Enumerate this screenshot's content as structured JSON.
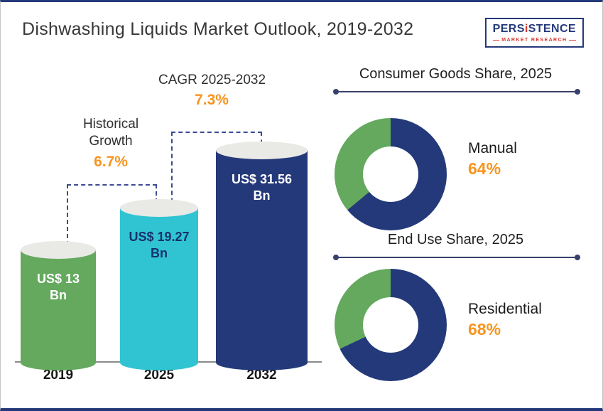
{
  "header": {
    "title": "Dishwashing Liquids Market Outlook, 2019-2032",
    "logo": {
      "part1": "PERS",
      "part2": "i",
      "part3": "STENCE",
      "tagline": "MARKET RESEARCH"
    }
  },
  "colors": {
    "green": "#64a95e",
    "teal": "#30c4d2",
    "navy": "#24397a",
    "orange": "#f7941e"
  },
  "chart_data": [
    {
      "type": "bar",
      "title": "Dishwashing Liquids Market Outlook, 2019-2032",
      "categories": [
        "2019",
        "2025",
        "2032"
      ],
      "values": [
        13,
        19.27,
        31.56
      ],
      "unit": "US$ Bn",
      "value_labels": [
        [
          "US$ 13",
          "Bn"
        ],
        [
          "US$ 19.27",
          "Bn"
        ],
        [
          "US$ 31.56",
          "Bn"
        ]
      ],
      "bar_colors": [
        "#64a95e",
        "#30c4d2",
        "#24397a"
      ],
      "label_colors": [
        "#ffffff",
        "#17316e",
        "#ffffff"
      ],
      "annotations": [
        {
          "label": "Historical Growth",
          "value": "6.7%",
          "from": "2019",
          "to": "2025"
        },
        {
          "label": "CAGR 2025-2032",
          "value": "7.3%",
          "from": "2025",
          "to": "2032"
        }
      ]
    },
    {
      "type": "pie",
      "donut": true,
      "title": "Consumer Goods Share, 2025",
      "labels": [
        "Manual",
        ""
      ],
      "values": [
        64,
        36
      ],
      "colors": [
        "#24397a",
        "#64a95e"
      ],
      "callout": {
        "label": "Manual",
        "value": "64%"
      }
    },
    {
      "type": "pie",
      "donut": true,
      "title": "End Use Share, 2025",
      "labels": [
        "Residential",
        ""
      ],
      "values": [
        68,
        32
      ],
      "colors": [
        "#24397a",
        "#64a95e"
      ],
      "callout": {
        "label": "Residential",
        "value": "68%"
      }
    }
  ]
}
